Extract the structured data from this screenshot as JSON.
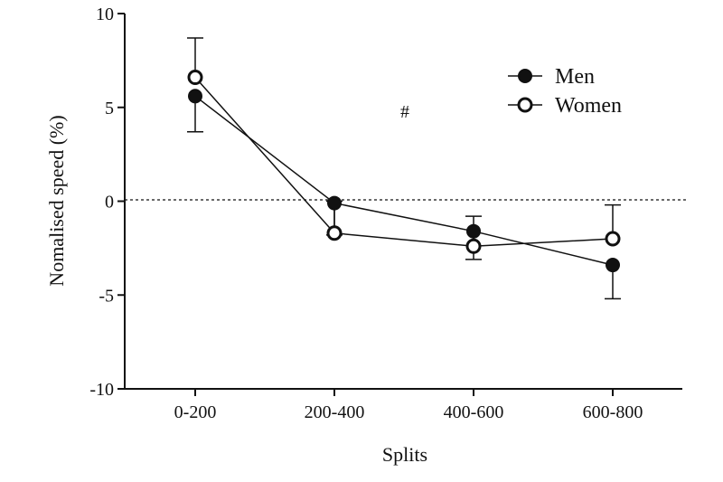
{
  "chart_data": {
    "type": "line",
    "categories": [
      "0-200",
      "200-400",
      "400-600",
      "600-800"
    ],
    "series": [
      {
        "name": "Men",
        "values": [
          5.6,
          -0.1,
          -1.6,
          -3.4
        ],
        "errors": [
          1.9,
          1.7,
          1.5,
          1.8
        ],
        "marker": "filled-circle",
        "error_direction": "down"
      },
      {
        "name": "Women",
        "values": [
          6.6,
          -1.7,
          -2.4,
          -2.0
        ],
        "errors": [
          2.1,
          1.7,
          1.6,
          1.8
        ],
        "marker": "open-circle",
        "error_direction": "up"
      }
    ],
    "xlabel": "Splits",
    "ylabel": "Nomalised speed (%)",
    "ylim": [
      -10,
      10
    ],
    "yticks": [
      "-10",
      "-5",
      "0",
      "5",
      "10"
    ],
    "reference_line": {
      "y": 0,
      "style": "dotted"
    },
    "annotation": "#",
    "legend_position": "top-right",
    "grid": false,
    "colors": {
      "line": "#111111",
      "marker_fill_men": "#111111",
      "marker_fill_women": "#ffffff"
    }
  }
}
